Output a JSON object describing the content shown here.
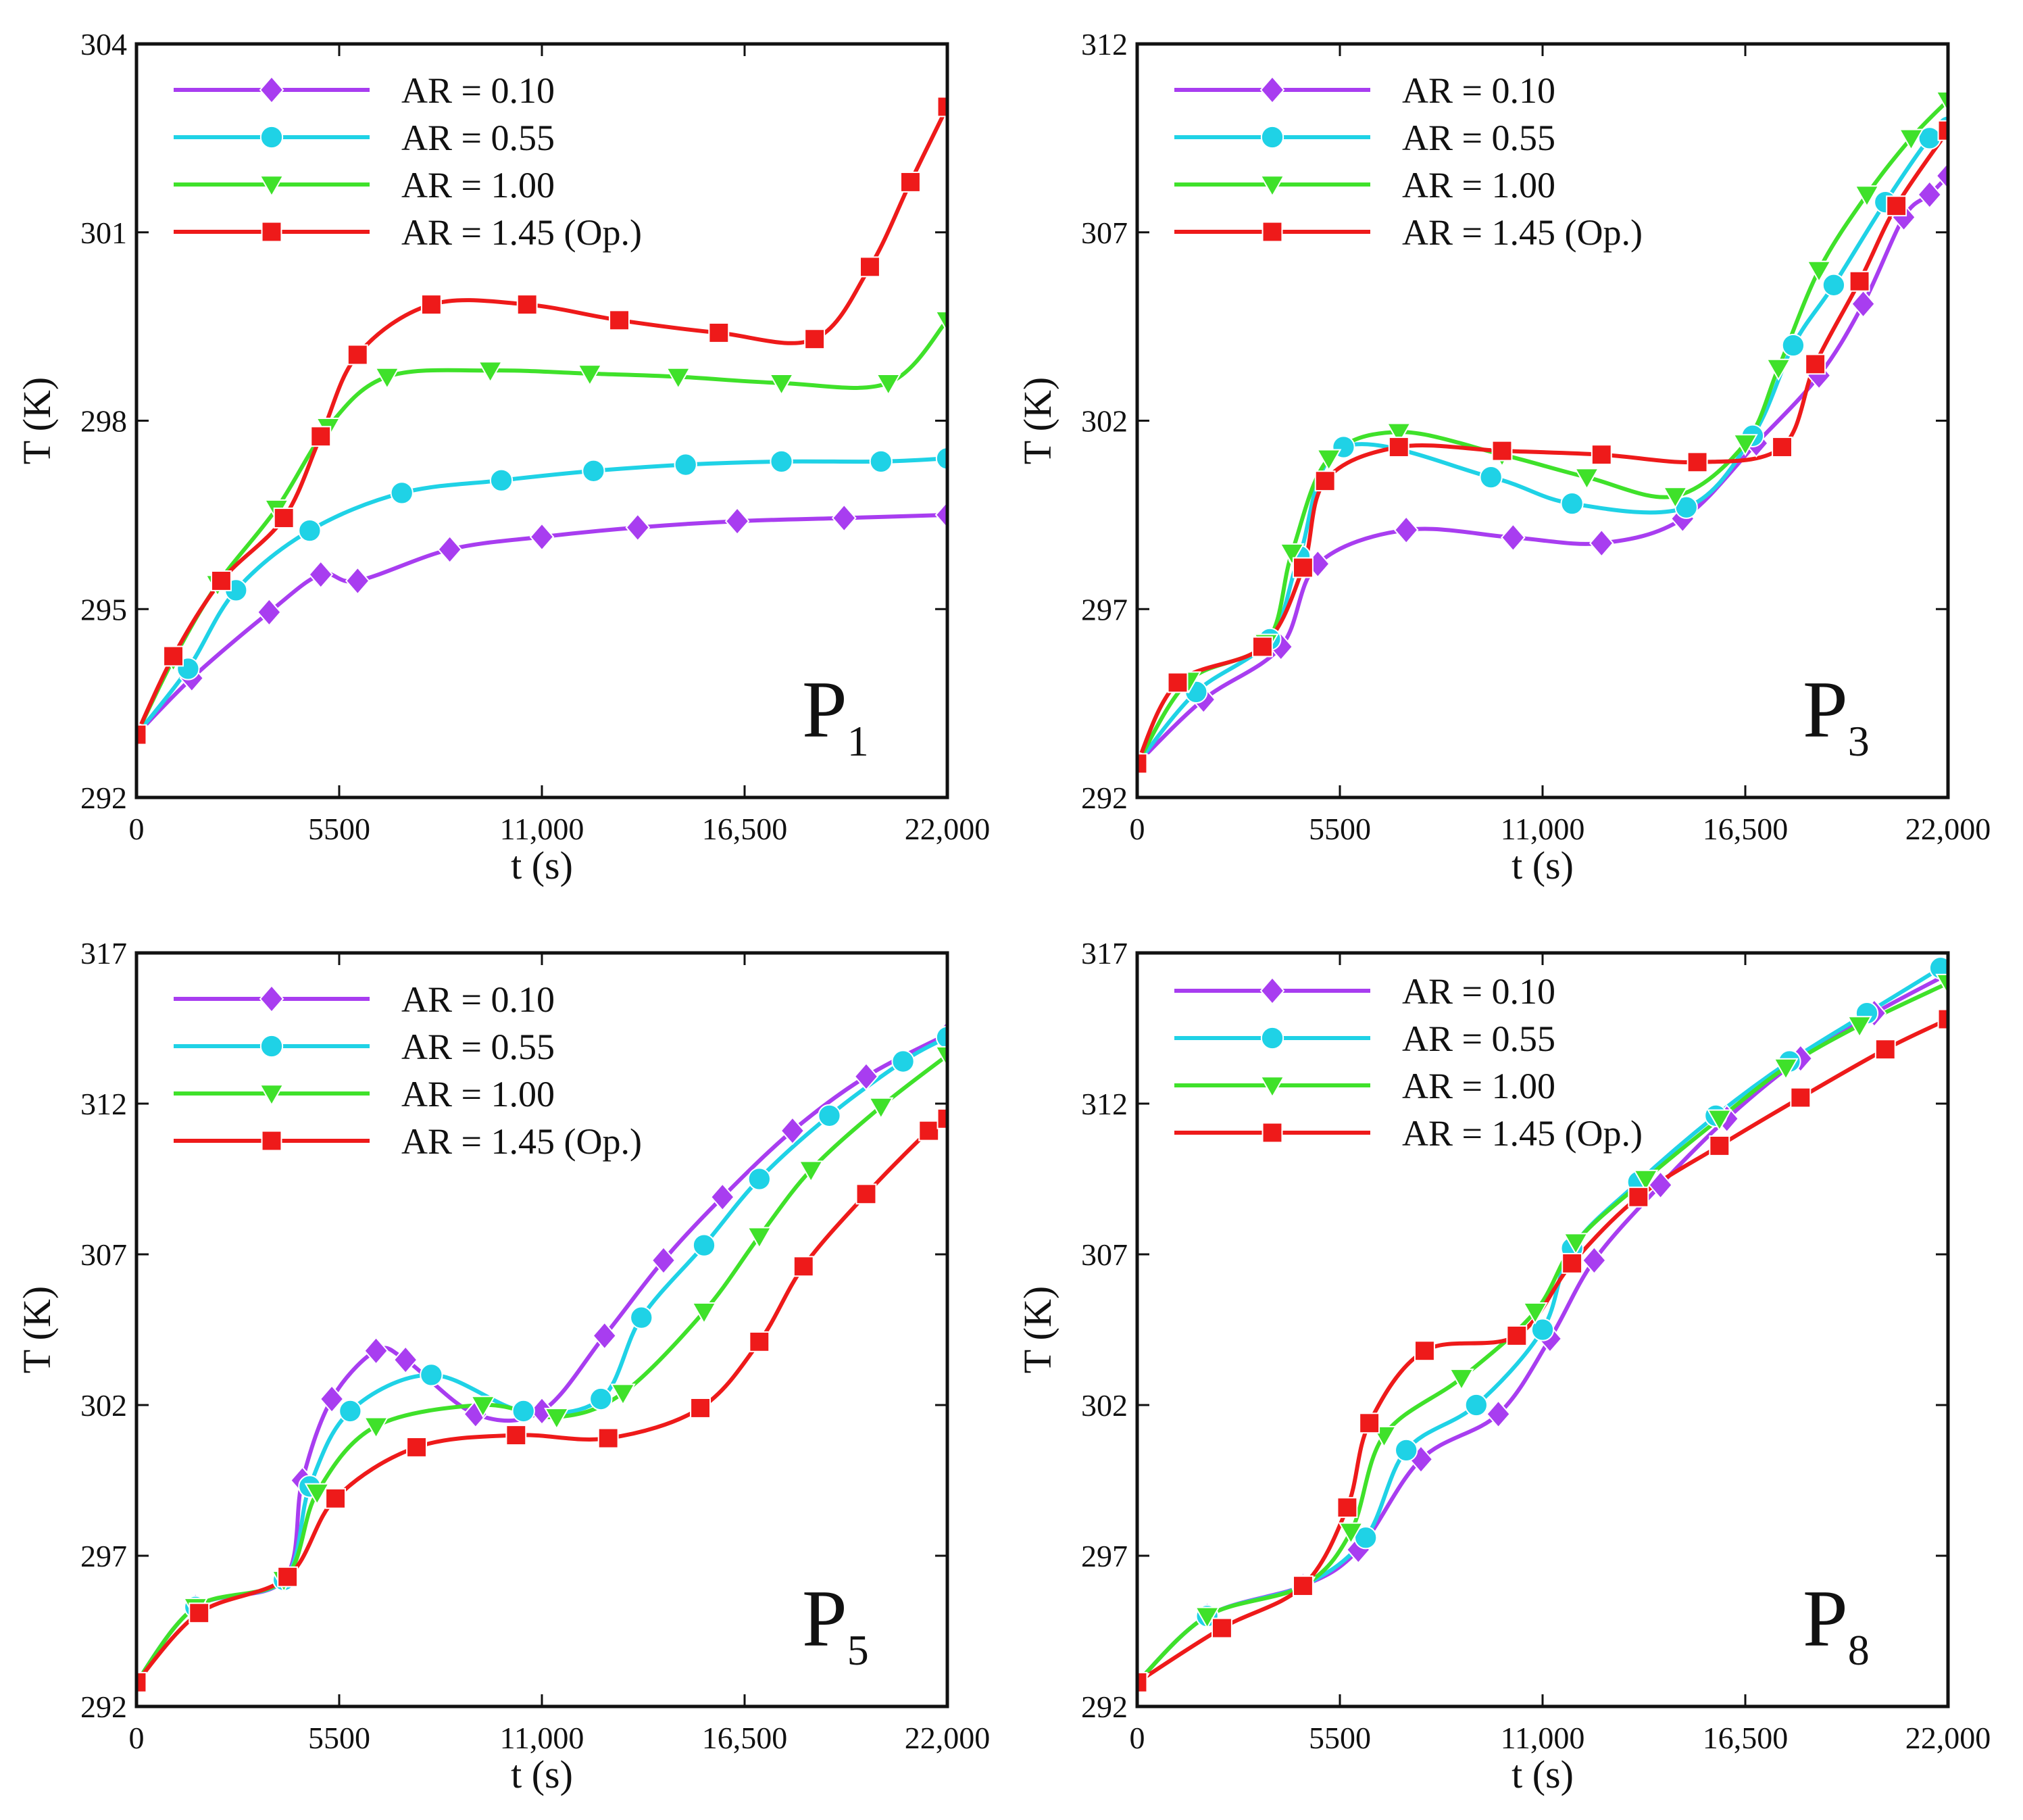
{
  "series_style": [
    {
      "name": "AR = 0.10",
      "color": "#a83df0",
      "marker": "diamond"
    },
    {
      "name": "AR = 0.55",
      "color": "#1fd2e6",
      "marker": "circle"
    },
    {
      "name": "AR = 1.00",
      "color": "#3fe12a",
      "marker": "triangle-down"
    },
    {
      "name": "AR = 1.45 (Op.)",
      "color": "#ee1a1a",
      "marker": "square"
    }
  ],
  "chart_data": [
    {
      "type": "line",
      "panel_label": "P",
      "panel_subscript": "1",
      "xlabel": "t (s)",
      "ylabel": "T (K)",
      "xlim": [
        0,
        22000
      ],
      "ylim": [
        292,
        304
      ],
      "xticks": [
        0,
        5500,
        11000,
        16500,
        22000
      ],
      "xtick_labels": [
        "0",
        "5500",
        "11,000",
        "16,500",
        "22,000"
      ],
      "yticks": [
        292,
        295,
        298,
        301,
        304
      ],
      "ytick_labels": [
        "292",
        "295",
        "298",
        "301",
        "304"
      ],
      "legend": [
        "AR = 0.10",
        "AR = 0.55",
        "AR = 1.00",
        "AR = 1.45 (Op.)"
      ],
      "legend_position": "top-left",
      "series": [
        {
          "name": "AR = 0.10",
          "x": [
            0,
            1500,
            3600,
            5000,
            6000,
            8500,
            11000,
            13600,
            16300,
            19200,
            22000
          ],
          "y": [
            293.0,
            293.9,
            294.95,
            295.55,
            295.45,
            295.95,
            296.15,
            296.3,
            296.4,
            296.45,
            296.5
          ]
        },
        {
          "name": "AR = 0.55",
          "x": [
            0,
            1400,
            2700,
            4700,
            7200,
            9900,
            12400,
            14900,
            17500,
            20200,
            22000
          ],
          "y": [
            293.0,
            294.05,
            295.3,
            296.25,
            296.85,
            297.05,
            297.2,
            297.3,
            297.35,
            297.35,
            297.4
          ]
        },
        {
          "name": "AR = 1.00",
          "x": [
            0,
            1000,
            2200,
            3800,
            5200,
            6800,
            9600,
            12300,
            14700,
            17500,
            20400,
            22000
          ],
          "y": [
            293.0,
            294.2,
            295.4,
            296.6,
            297.9,
            298.7,
            298.8,
            298.75,
            298.7,
            298.6,
            298.6,
            299.6
          ]
        },
        {
          "name": "AR = 1.45 (Op.)",
          "x": [
            0,
            1000,
            2300,
            4000,
            5000,
            6000,
            8000,
            10600,
            13100,
            15800,
            18400,
            19900,
            21000,
            22000
          ],
          "y": [
            293.0,
            294.25,
            295.45,
            296.45,
            297.75,
            299.05,
            299.85,
            299.85,
            299.6,
            299.4,
            299.3,
            300.45,
            301.8,
            303.0
          ]
        }
      ]
    },
    {
      "type": "line",
      "panel_label": "P",
      "panel_subscript": "3",
      "xlabel": "t (s)",
      "ylabel": "T (K)",
      "xlim": [
        0,
        22000
      ],
      "ylim": [
        292,
        312
      ],
      "xticks": [
        0,
        5500,
        11000,
        16500,
        22000
      ],
      "xtick_labels": [
        "0",
        "5500",
        "11,000",
        "16,500",
        "22,000"
      ],
      "yticks": [
        292,
        297,
        302,
        307,
        312
      ],
      "ytick_labels": [
        "292",
        "297",
        "302",
        "307",
        "312"
      ],
      "legend": [
        "AR = 0.10",
        "AR = 0.55",
        "AR = 1.00",
        "AR = 1.45 (Op.)"
      ],
      "legend_position": "top-left",
      "series": [
        {
          "name": "AR = 0.10",
          "x": [
            0,
            1800,
            3900,
            4900,
            7300,
            10200,
            12600,
            14800,
            16800,
            18500,
            19700,
            20800,
            21500,
            22000
          ],
          "y": [
            292.9,
            294.6,
            296.0,
            298.2,
            299.1,
            298.9,
            298.75,
            299.4,
            301.4,
            303.2,
            305.1,
            307.4,
            308.0,
            308.5
          ]
        },
        {
          "name": "AR = 0.55",
          "x": [
            0,
            1600,
            3600,
            4400,
            5600,
            9600,
            11800,
            14900,
            16700,
            17800,
            18900,
            20300,
            21500,
            22000
          ],
          "y": [
            292.9,
            294.8,
            296.2,
            298.4,
            301.3,
            300.5,
            299.8,
            299.7,
            301.6,
            304.0,
            305.6,
            307.8,
            309.5,
            309.8
          ]
        },
        {
          "name": "AR = 1.00",
          "x": [
            0,
            1400,
            3500,
            4200,
            5200,
            7100,
            9900,
            12200,
            14600,
            16500,
            17400,
            18500,
            19800,
            21000,
            22000
          ],
          "y": [
            292.9,
            295.1,
            296.1,
            298.5,
            301.0,
            301.7,
            301.1,
            300.5,
            300.0,
            301.4,
            303.4,
            306.0,
            308.0,
            309.5,
            310.5
          ]
        },
        {
          "name": "AR = 1.45 (Op.)",
          "x": [
            0,
            1100,
            3400,
            4500,
            5100,
            7100,
            9900,
            12600,
            15200,
            17500,
            18400,
            19600,
            20600,
            22000
          ],
          "y": [
            292.9,
            295.05,
            296.0,
            298.1,
            300.4,
            301.3,
            301.2,
            301.1,
            300.9,
            301.3,
            303.5,
            305.7,
            307.7,
            309.7
          ]
        }
      ]
    },
    {
      "type": "line",
      "panel_label": "P",
      "panel_subscript": "5",
      "xlabel": "t (s)",
      "ylabel": "T (K)",
      "xlim": [
        0,
        22000
      ],
      "ylim": [
        292,
        317
      ],
      "xticks": [
        0,
        5500,
        11000,
        16500,
        22000
      ],
      "xtick_labels": [
        "0",
        "5500",
        "11,000",
        "16,500",
        "22,000"
      ],
      "yticks": [
        292,
        297,
        302,
        307,
        312,
        317
      ],
      "ytick_labels": [
        "292",
        "297",
        "302",
        "307",
        "312",
        "317"
      ],
      "legend": [
        "AR = 0.10",
        "AR = 0.55",
        "AR = 1.00",
        "AR = 1.45 (Op.)"
      ],
      "legend_position": "top-left",
      "series": [
        {
          "name": "AR = 0.10",
          "x": [
            0,
            1600,
            4000,
            4500,
            5300,
            6500,
            7300,
            9200,
            11000,
            12700,
            14300,
            15900,
            17800,
            19800,
            22000
          ],
          "y": [
            292.8,
            295.3,
            296.2,
            299.5,
            302.2,
            303.8,
            303.5,
            301.7,
            301.8,
            304.3,
            306.8,
            308.9,
            311.1,
            312.9,
            314.3
          ]
        },
        {
          "name": "AR = 0.55",
          "x": [
            0,
            1600,
            4000,
            4700,
            5800,
            8000,
            10500,
            12600,
            13700,
            15400,
            16900,
            18800,
            20800,
            22000
          ],
          "y": [
            292.8,
            295.3,
            296.2,
            299.3,
            301.8,
            303.0,
            301.8,
            302.2,
            304.9,
            307.3,
            309.5,
            311.6,
            313.4,
            314.2
          ]
        },
        {
          "name": "AR = 1.00",
          "x": [
            0,
            1600,
            4000,
            4900,
            6500,
            9400,
            11400,
            13200,
            15400,
            16900,
            18300,
            20200,
            22000
          ],
          "y": [
            292.8,
            295.3,
            296.2,
            299.1,
            301.3,
            302.0,
            301.6,
            302.4,
            305.1,
            307.6,
            309.8,
            311.9,
            313.6
          ]
        },
        {
          "name": "AR = 1.45 (Op.)",
          "x": [
            0,
            1700,
            4100,
            5400,
            7600,
            10300,
            12800,
            15300,
            16900,
            18100,
            19800,
            21500,
            22000
          ],
          "y": [
            292.8,
            295.1,
            296.3,
            298.9,
            300.6,
            301.0,
            300.9,
            301.9,
            304.1,
            306.6,
            309.0,
            311.1,
            311.5
          ]
        }
      ]
    },
    {
      "type": "line",
      "panel_label": "P",
      "panel_subscript": "8",
      "xlabel": "t (s)",
      "ylabel": "T (K)",
      "xlim": [
        0,
        22000
      ],
      "ylim": [
        292,
        317
      ],
      "xticks": [
        0,
        5500,
        11000,
        16500,
        22000
      ],
      "xtick_labels": [
        "0",
        "5500",
        "11,000",
        "16,500",
        "22,000"
      ],
      "yticks": [
        292,
        297,
        302,
        307,
        312,
        317
      ],
      "ytick_labels": [
        "292",
        "297",
        "302",
        "307",
        "312",
        "317"
      ],
      "legend": [
        "AR = 0.10",
        "AR = 0.55",
        "AR = 1.00",
        "AR = 1.45 (Op.)"
      ],
      "legend_position": "top-left",
      "series": [
        {
          "name": "AR = 0.10",
          "x": [
            0,
            1900,
            4500,
            6000,
            7700,
            9800,
            11200,
            12400,
            14200,
            16000,
            18000,
            20000,
            22000
          ],
          "y": [
            292.8,
            295.0,
            296.0,
            297.2,
            300.2,
            301.7,
            304.2,
            306.8,
            309.3,
            311.5,
            313.5,
            315.0,
            316.3
          ]
        },
        {
          "name": "AR = 0.55",
          "x": [
            0,
            1900,
            4500,
            6200,
            7300,
            9200,
            11000,
            11800,
            13600,
            15700,
            17700,
            19800,
            21800
          ],
          "y": [
            292.8,
            295.0,
            296.0,
            297.6,
            300.5,
            302.0,
            304.5,
            307.2,
            309.4,
            311.6,
            313.4,
            315.0,
            316.5
          ]
        },
        {
          "name": "AR = 1.00",
          "x": [
            0,
            1900,
            4500,
            5800,
            6700,
            8800,
            10800,
            11900,
            13800,
            15800,
            17600,
            19600,
            22000
          ],
          "y": [
            292.8,
            295.0,
            296.0,
            297.8,
            301.0,
            302.9,
            305.1,
            307.4,
            309.5,
            311.5,
            313.2,
            314.6,
            316.0
          ]
        },
        {
          "name": "AR = 1.45 (Op.)",
          "x": [
            0,
            2300,
            4500,
            5700,
            6300,
            7800,
            10300,
            11800,
            13600,
            15800,
            18000,
            20300,
            22000
          ],
          "y": [
            292.8,
            294.6,
            296.0,
            298.6,
            301.4,
            303.8,
            304.3,
            306.7,
            308.9,
            310.6,
            312.2,
            313.8,
            314.8
          ]
        }
      ]
    }
  ]
}
